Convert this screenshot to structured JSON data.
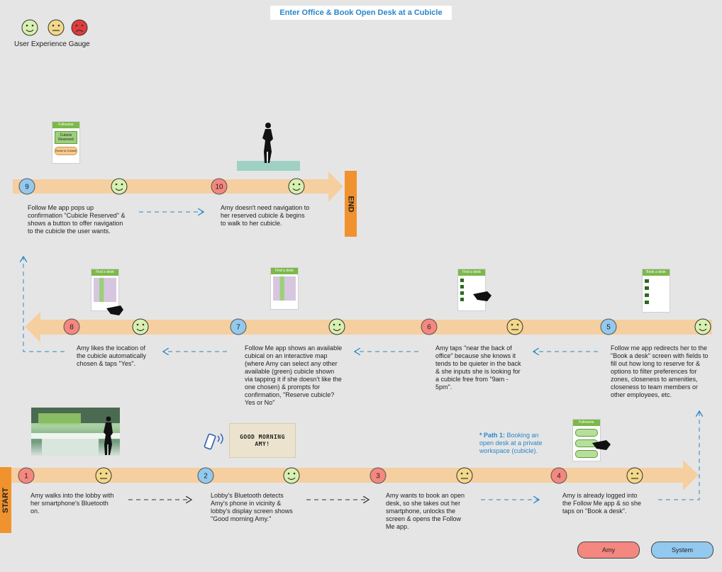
{
  "title": "Enter Office & Book Open Desk at a Cubicle",
  "gauge": {
    "label": "User Experience Gauge",
    "faces": [
      "happy",
      "neutral",
      "sad"
    ]
  },
  "labels": {
    "start": "START",
    "end": "END"
  },
  "colors": {
    "amy": "#f4877f",
    "system": "#93c9ef",
    "lane": "#f5cfa0",
    "label_box": "#f0922e",
    "link_blue": "#2a86c8",
    "happy_face": "#d8f0b0",
    "neutral_face": "#f3d88a",
    "sad_face": "#e23b3b",
    "mock_header": "#7cb84a"
  },
  "steps": [
    {
      "num": "1",
      "actor": "amy",
      "face": "neutral",
      "text": "Amy walks into the lobby with her smartphone's Bluetooth on."
    },
    {
      "num": "2",
      "actor": "system",
      "face": "happy",
      "text": "Lobby's Bluetooth detects Amy's phone in vicinity & lobby's display screen shows \"Good morning Amy.\""
    },
    {
      "num": "3",
      "actor": "amy",
      "face": "neutral",
      "text": "Amy wants to book an open desk, so she takes out her smartphone, unlocks the screen & opens the Follow Me app."
    },
    {
      "num": "4",
      "actor": "amy",
      "face": "neutral",
      "text": "Amy is already logged into the Follow Me app & so she taps on \"Book a desk\"."
    },
    {
      "num": "5",
      "actor": "system",
      "face": "happy",
      "text": "Follow me app redirects her to the \"Book a desk\" screen with fields to fill out how long to reserve for & options to filter preferences for zones, closeness to amenities, closeness to team members or other employees, etc."
    },
    {
      "num": "6",
      "actor": "amy",
      "face": "neutral",
      "text": "Amy taps \"near the back of office\" because she knows it tends to be quieter in the back & she inputs she is looking for a cubicle free from \"9am - 5pm\"."
    },
    {
      "num": "7",
      "actor": "system",
      "face": "happy",
      "text": "Follow Me app shows an available cubical on an interactive map (where Amy can select any other available (green) cubicle shown via tapping it if she doesn't like the one chosen) & prompts for confirmation, \"Reserve cubicle? Yes or No\""
    },
    {
      "num": "8",
      "actor": "amy",
      "face": "happy",
      "text": "Amy likes the location of the cubicle automatically chosen & taps \"Yes\"."
    },
    {
      "num": "9",
      "actor": "system",
      "face": "happy",
      "text": "Follow Me app pops up confirmation \"Cubicle Reserved\" & shows a button to offer navigation to the cubicle the user wants."
    },
    {
      "num": "10",
      "actor": "amy",
      "face": "happy",
      "text": "Amy doesn't need navigation to her reserved cubicle & begins to walk to her cubicle."
    }
  ],
  "path_note": {
    "bold": "* Path 1:",
    "rest": " Booking an open desk at a private workspace (cubicle)."
  },
  "greeting_screen": {
    "line1": "GOOD MORNING",
    "line2": "AMY!"
  },
  "mockups": {
    "confirm": {
      "header": "Followme",
      "box": "Cubicle Reserved",
      "button": "Route to Cubicle"
    },
    "map": {
      "header": "Find a desk"
    },
    "map2": {
      "header": "Find a desk"
    },
    "filter": {
      "header": "Find a desk"
    },
    "book": {
      "header": "Book a desk"
    },
    "home": {
      "header": "Followme"
    }
  },
  "legend": {
    "amy": "Amy",
    "system": "System"
  }
}
